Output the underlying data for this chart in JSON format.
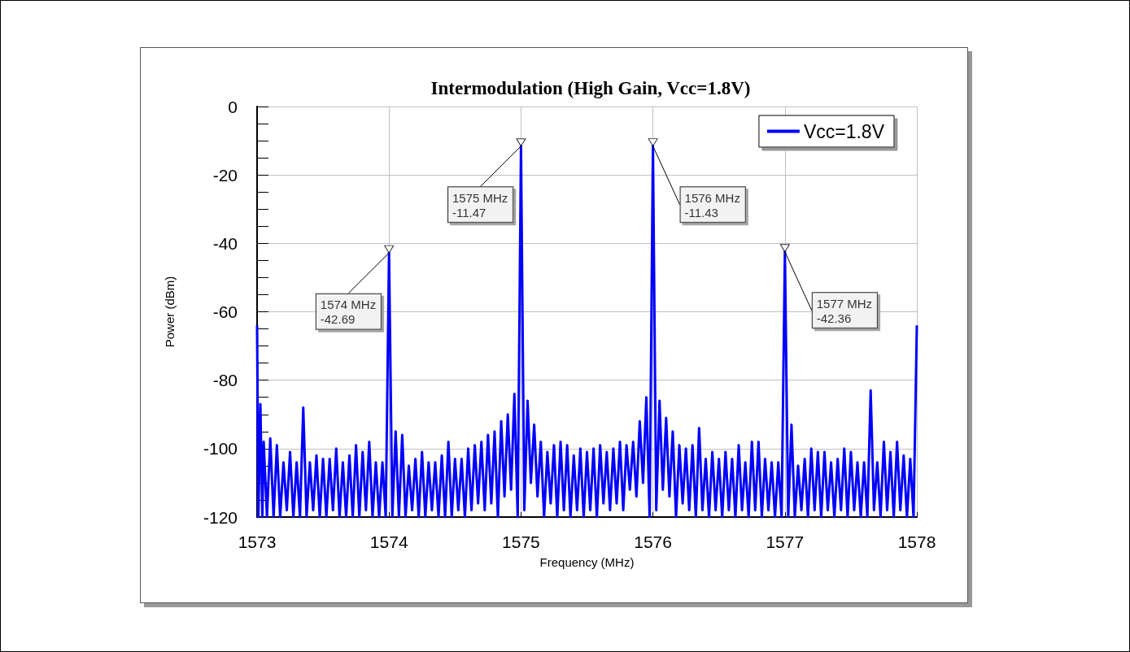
{
  "chart_data": {
    "type": "line",
    "title": "Intermodulation (High Gain, Vcc=1.8V)",
    "xlabel": "Frequency (MHz)",
    "ylabel": "Power (dBm)",
    "xlim": [
      1573,
      1578
    ],
    "xticks": [
      1573,
      1574,
      1575,
      1576,
      1577,
      1578
    ],
    "ylim": [
      -120,
      0
    ],
    "yticks": [
      -120,
      -100,
      -80,
      -60,
      -40,
      -20,
      0
    ],
    "grid": true,
    "legend": "top right",
    "marker": "none",
    "line_style": "solid",
    "series": [
      {
        "name": "Vcc=1.8V",
        "color": "#0000ff",
        "x": [
          1573,
          1573.01,
          1573.025,
          1573.04,
          1573.05,
          1573.075,
          1573.1,
          1573.125,
          1573.15,
          1573.175,
          1573.2,
          1573.225,
          1573.25,
          1573.275,
          1573.3,
          1573.325,
          1573.35,
          1573.375,
          1573.4,
          1573.425,
          1573.45,
          1573.475,
          1573.5,
          1573.525,
          1573.55,
          1573.575,
          1573.6,
          1573.625,
          1573.65,
          1573.675,
          1573.7,
          1573.725,
          1573.75,
          1573.775,
          1573.8,
          1573.825,
          1573.85,
          1573.875,
          1573.9,
          1573.925,
          1573.95,
          1573.975,
          1574,
          1574.025,
          1574.05,
          1574.075,
          1574.1,
          1574.125,
          1574.15,
          1574.175,
          1574.2,
          1574.225,
          1574.25,
          1574.275,
          1574.3,
          1574.325,
          1574.35,
          1574.375,
          1574.4,
          1574.425,
          1574.45,
          1574.475,
          1574.5,
          1574.525,
          1574.55,
          1574.575,
          1574.6,
          1574.625,
          1574.65,
          1574.675,
          1574.7,
          1574.725,
          1574.75,
          1574.775,
          1574.8,
          1574.825,
          1574.85,
          1574.875,
          1574.9,
          1574.925,
          1574.95,
          1574.975,
          1575,
          1575.025,
          1575.05,
          1575.075,
          1575.1,
          1575.125,
          1575.15,
          1575.175,
          1575.2,
          1575.225,
          1575.25,
          1575.275,
          1575.3,
          1575.325,
          1575.35,
          1575.375,
          1575.4,
          1575.425,
          1575.45,
          1575.475,
          1575.5,
          1575.525,
          1575.55,
          1575.575,
          1575.6,
          1575.625,
          1575.65,
          1575.675,
          1575.7,
          1575.725,
          1575.75,
          1575.775,
          1575.8,
          1575.825,
          1575.85,
          1575.875,
          1575.9,
          1575.925,
          1575.95,
          1575.975,
          1576,
          1576.025,
          1576.05,
          1576.075,
          1576.1,
          1576.125,
          1576.15,
          1576.175,
          1576.2,
          1576.225,
          1576.25,
          1576.275,
          1576.3,
          1576.325,
          1576.35,
          1576.375,
          1576.4,
          1576.425,
          1576.45,
          1576.475,
          1576.5,
          1576.525,
          1576.55,
          1576.575,
          1576.6,
          1576.625,
          1576.65,
          1576.675,
          1576.7,
          1576.725,
          1576.75,
          1576.775,
          1576.8,
          1576.825,
          1576.85,
          1576.875,
          1576.9,
          1576.925,
          1576.95,
          1576.975,
          1577,
          1577.025,
          1577.05,
          1577.075,
          1577.1,
          1577.125,
          1577.15,
          1577.175,
          1577.2,
          1577.225,
          1577.25,
          1577.275,
          1577.3,
          1577.325,
          1577.35,
          1577.375,
          1577.4,
          1577.425,
          1577.45,
          1577.475,
          1577.5,
          1577.525,
          1577.55,
          1577.575,
          1577.6,
          1577.625,
          1577.65,
          1577.675,
          1577.7,
          1577.725,
          1577.75,
          1577.775,
          1577.8,
          1577.825,
          1577.85,
          1577.875,
          1577.9,
          1577.925,
          1577.95,
          1577.975,
          1578
        ],
        "values": [
          -64,
          -120,
          -87,
          -120,
          -98,
          -120,
          -97,
          -120,
          -99,
          -120,
          -104,
          -118,
          -101,
          -120,
          -104,
          -120,
          -88,
          -120,
          -104,
          -118,
          -102,
          -120,
          -103,
          -120,
          -103,
          -118,
          -100,
          -120,
          -104,
          -120,
          -102,
          -120,
          -99,
          -120,
          -101,
          -118,
          -98,
          -120,
          -104,
          -120,
          -104,
          -120,
          -42.69,
          -120,
          -95,
          -120,
          -96,
          -120,
          -105,
          -118,
          -103,
          -120,
          -101,
          -120,
          -104,
          -118,
          -104,
          -120,
          -102,
          -120,
          -98,
          -120,
          -103,
          -118,
          -103,
          -120,
          -100,
          -118,
          -99,
          -116,
          -98,
          -118,
          -96,
          -116,
          -95,
          -120,
          -92,
          -114,
          -90,
          -112,
          -84,
          -120,
          -11.47,
          -118,
          -86,
          -110,
          -93,
          -114,
          -98,
          -120,
          -101,
          -116,
          -99,
          -120,
          -98,
          -118,
          -99,
          -120,
          -102,
          -118,
          -100,
          -120,
          -101,
          -118,
          -100,
          -120,
          -99,
          -116,
          -101,
          -118,
          -100,
          -116,
          -98,
          -118,
          -99,
          -112,
          -98,
          -114,
          -92,
          -110,
          -85,
          -120,
          -11.43,
          -118,
          -86,
          -112,
          -91,
          -114,
          -95,
          -120,
          -99,
          -116,
          -100,
          -118,
          -99,
          -120,
          -94,
          -118,
          -103,
          -120,
          -101,
          -118,
          -103,
          -120,
          -101,
          -118,
          -103,
          -120,
          -99,
          -118,
          -104,
          -120,
          -98,
          -118,
          -98,
          -120,
          -103,
          -118,
          -104,
          -120,
          -104,
          -120,
          -42.36,
          -120,
          -93,
          -120,
          -105,
          -118,
          -103,
          -120,
          -100,
          -118,
          -101,
          -120,
          -101,
          -118,
          -104,
          -120,
          -103,
          -118,
          -100,
          -120,
          -101,
          -118,
          -104,
          -120,
          -104,
          -120,
          -83,
          -118,
          -104,
          -120,
          -98,
          -118,
          -101,
          -120,
          -98,
          -118,
          -102,
          -120,
          -103,
          -120,
          -64
        ]
      }
    ],
    "annotations": [
      {
        "text": "1574 MHz\n-42.69",
        "x": 1574,
        "y": -42.69
      },
      {
        "text": "1575 MHz\n-11.47",
        "x": 1575,
        "y": -11.47
      },
      {
        "text": "1576 MHz\n-11.43",
        "x": 1576,
        "y": -11.43
      },
      {
        "text": "1577 MHz\n-42.36",
        "x": 1577,
        "y": -42.36
      }
    ]
  }
}
